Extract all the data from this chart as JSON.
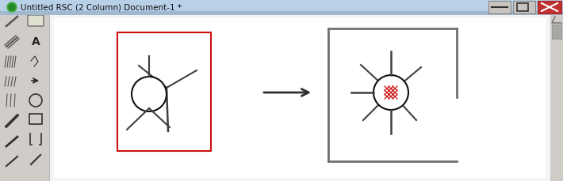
{
  "bg_color": "#dce8f0",
  "toolbar_bg": "#d0ccc8",
  "titlebar_bg": "#6090c8",
  "titlebar_text": "Untitled RSC (2 Column) Document-1 *",
  "main_content_bg": "#f0f0f0",
  "white": "#ffffff",
  "box1_edge_color": "#cc1111",
  "box2_edge_color": "#707070",
  "line_color": "#404040",
  "arrow_color": "#303030",
  "red_color": "#cc1111",
  "circle_edge": "#111111",
  "scrollbar_bg": "#d0ccc8",
  "scroll_track": "#c0bcb8"
}
